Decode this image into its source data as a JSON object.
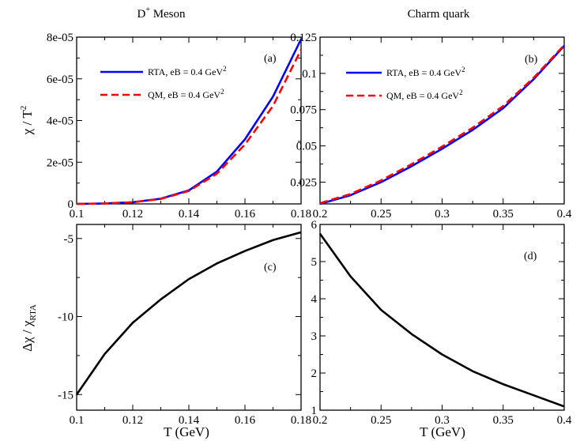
{
  "figure": {
    "left_title": "D",
    "left_title_sup": "+",
    "left_title_rest": " Meson",
    "right_title": "Charm quark",
    "ylabel_top": "χ / T",
    "ylabel_top_sup": "2",
    "ylabel_bottom": "Δχ / χ",
    "ylabel_bottom_sub": "RTA",
    "xlabel_left": "T  (GeV)",
    "xlabel_right": "T (GeV)"
  },
  "colors": {
    "rta": "#0000ff",
    "qm": "#ff0000",
    "diff": "#000000"
  },
  "chart_data": [
    {
      "id": "a",
      "type": "line",
      "panel_label": "(a)",
      "xlim": [
        0.1,
        0.18
      ],
      "ylim": [
        0,
        8e-05
      ],
      "xticks": [
        "0.1",
        "0.12",
        "0.14",
        "0.16",
        "0.18"
      ],
      "yticks": [
        {
          "value": 0,
          "label": "0"
        },
        {
          "value": 2e-05,
          "label": "2e-05"
        },
        {
          "value": 4e-05,
          "label": "4e-05"
        },
        {
          "value": 6e-05,
          "label": "6e-05"
        },
        {
          "value": 8e-05,
          "label": "8e-05"
        }
      ],
      "legend": "top-left",
      "series": [
        {
          "name": "RTA, eB = 0.4 GeV",
          "name_sup": "2",
          "style": "solid",
          "color_key": "rta",
          "x": [
            0.1,
            0.11,
            0.12,
            0.13,
            0.14,
            0.15,
            0.16,
            0.17,
            0.18
          ],
          "y": [
            0,
            2e-07,
            8e-07,
            2.5e-06,
            6.5e-06,
            1.55e-05,
            3.1e-05,
            5.15e-05,
            7.9e-05
          ]
        },
        {
          "name": "QM, eB = 0.4 GeV",
          "name_sup": "2",
          "style": "dashed",
          "color_key": "qm",
          "x": [
            0.1,
            0.11,
            0.12,
            0.13,
            0.14,
            0.15,
            0.16,
            0.17,
            0.18
          ],
          "y": [
            0,
            2e-07,
            8e-07,
            2.4e-06,
            6.2e-06,
            1.45e-05,
            2.85e-05,
            4.7e-05,
            7.4e-05
          ]
        }
      ]
    },
    {
      "id": "b",
      "type": "line",
      "panel_label": "(b)",
      "xlim": [
        0.2,
        0.4
      ],
      "ylim": [
        0.01,
        0.125
      ],
      "xticks": [
        "0.2",
        "0.25",
        "0.3",
        "0.35",
        "0.4"
      ],
      "yticks": [
        {
          "value": 0.025,
          "label": "0.025"
        },
        {
          "value": 0.05,
          "label": "0.05"
        },
        {
          "value": 0.075,
          "label": "0.075"
        },
        {
          "value": 0.1,
          "label": "0.1"
        },
        {
          "value": 0.125,
          "label": "0.125"
        }
      ],
      "legend": "top-left",
      "series": [
        {
          "name": "RTA, eB = 0.4 GeV",
          "name_sup": "2",
          "style": "solid",
          "color_key": "rta",
          "x": [
            0.2,
            0.225,
            0.25,
            0.275,
            0.3,
            0.325,
            0.35,
            0.375,
            0.4
          ],
          "y": [
            0.01,
            0.016,
            0.025,
            0.036,
            0.048,
            0.061,
            0.076,
            0.096,
            0.119
          ]
        },
        {
          "name": "QM, eB = 0.4 GeV",
          "name_sup": "2",
          "style": "dashed",
          "color_key": "qm",
          "x": [
            0.2,
            0.225,
            0.25,
            0.275,
            0.3,
            0.325,
            0.35,
            0.375,
            0.4
          ],
          "y": [
            0.0105,
            0.0168,
            0.0262,
            0.0374,
            0.0495,
            0.0625,
            0.0775,
            0.097,
            0.1195
          ]
        }
      ]
    },
    {
      "id": "c",
      "type": "line",
      "panel_label": "(c)",
      "xlim": [
        0.1,
        0.18
      ],
      "ylim": [
        -16,
        -4.1
      ],
      "xticks": [
        "0.1",
        "0.12",
        "0.14",
        "0.16",
        "0.18"
      ],
      "yticks": [
        {
          "value": -15,
          "label": "-15"
        },
        {
          "value": -10,
          "label": "-10"
        },
        {
          "value": -5,
          "label": "-5"
        }
      ],
      "series": [
        {
          "name": "",
          "style": "solid",
          "color_key": "diff",
          "x": [
            0.1,
            0.11,
            0.12,
            0.13,
            0.14,
            0.15,
            0.16,
            0.17,
            0.18
          ],
          "y": [
            -15.0,
            -12.4,
            -10.4,
            -8.9,
            -7.6,
            -6.6,
            -5.8,
            -5.1,
            -4.6
          ]
        }
      ]
    },
    {
      "id": "d",
      "type": "line",
      "panel_label": "(d)",
      "xlim": [
        0.2,
        0.4
      ],
      "ylim": [
        1,
        6
      ],
      "xticks": [
        "0.2",
        "0.25",
        "0.3",
        "0.35",
        "0.4"
      ],
      "yticks": [
        {
          "value": 1,
          "label": "1"
        },
        {
          "value": 2,
          "label": "2"
        },
        {
          "value": 3,
          "label": "3"
        },
        {
          "value": 4,
          "label": "4"
        },
        {
          "value": 5,
          "label": "5"
        },
        {
          "value": 6,
          "label": "6"
        }
      ],
      "series": [
        {
          "name": "",
          "style": "solid",
          "color_key": "diff",
          "x": [
            0.2,
            0.225,
            0.25,
            0.275,
            0.3,
            0.325,
            0.35,
            0.375,
            0.4
          ],
          "y": [
            5.75,
            4.6,
            3.7,
            3.05,
            2.5,
            2.05,
            1.7,
            1.4,
            1.1
          ]
        }
      ]
    }
  ]
}
